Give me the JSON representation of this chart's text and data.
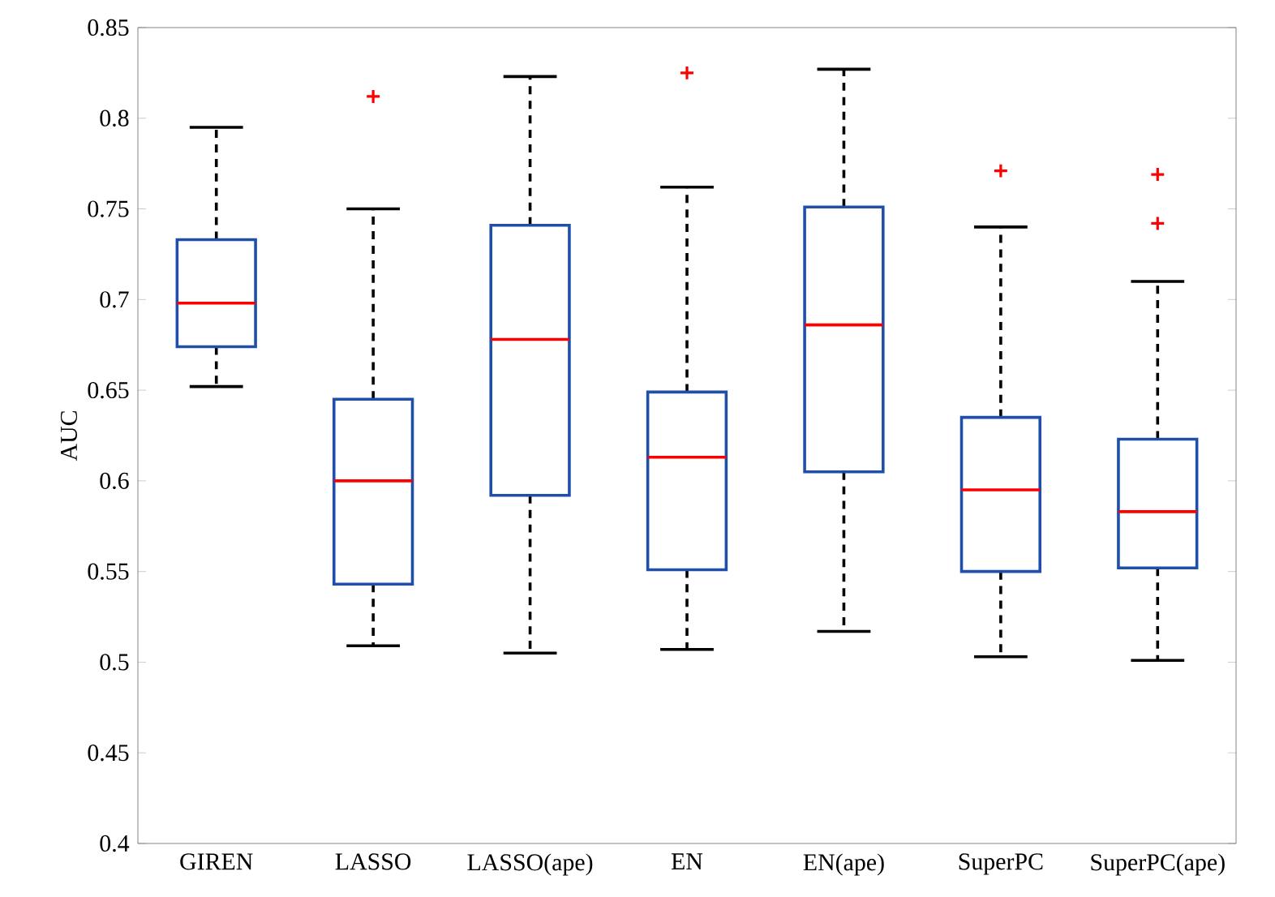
{
  "chart_data": {
    "type": "box",
    "ylabel": "AUC",
    "categories": [
      "GIREN",
      "LASSO",
      "LASSO(ape)",
      "EN",
      "EN(ape)",
      "SuperPC",
      "SuperPC(ape)"
    ],
    "ylim": [
      0.4,
      0.85
    ],
    "yticks": [
      0.4,
      0.45,
      0.5,
      0.55,
      0.6,
      0.65,
      0.7,
      0.75,
      0.8,
      0.85
    ],
    "grid": false,
    "series": [
      {
        "color": "#1f4fa8",
        "boxes": [
          {
            "low": 0.652,
            "q1": 0.674,
            "median": 0.698,
            "q3": 0.733,
            "high": 0.795
          },
          {
            "low": 0.509,
            "q1": 0.543,
            "median": 0.6,
            "q3": 0.645,
            "high": 0.75,
            "outliers": [
              0.812
            ]
          },
          {
            "low": 0.505,
            "q1": 0.592,
            "median": 0.678,
            "q3": 0.741,
            "high": 0.823
          },
          {
            "low": 0.507,
            "q1": 0.551,
            "median": 0.613,
            "q3": 0.649,
            "high": 0.762,
            "outliers": [
              0.825
            ]
          },
          {
            "low": 0.517,
            "q1": 0.605,
            "median": 0.686,
            "q3": 0.751,
            "high": 0.827
          },
          {
            "low": 0.503,
            "q1": 0.55,
            "median": 0.595,
            "q3": 0.635,
            "high": 0.74,
            "outliers": [
              0.771
            ]
          },
          {
            "low": 0.501,
            "q1": 0.552,
            "median": 0.583,
            "q3": 0.623,
            "high": 0.71,
            "outliers": [
              0.769,
              0.742
            ]
          }
        ]
      }
    ]
  }
}
